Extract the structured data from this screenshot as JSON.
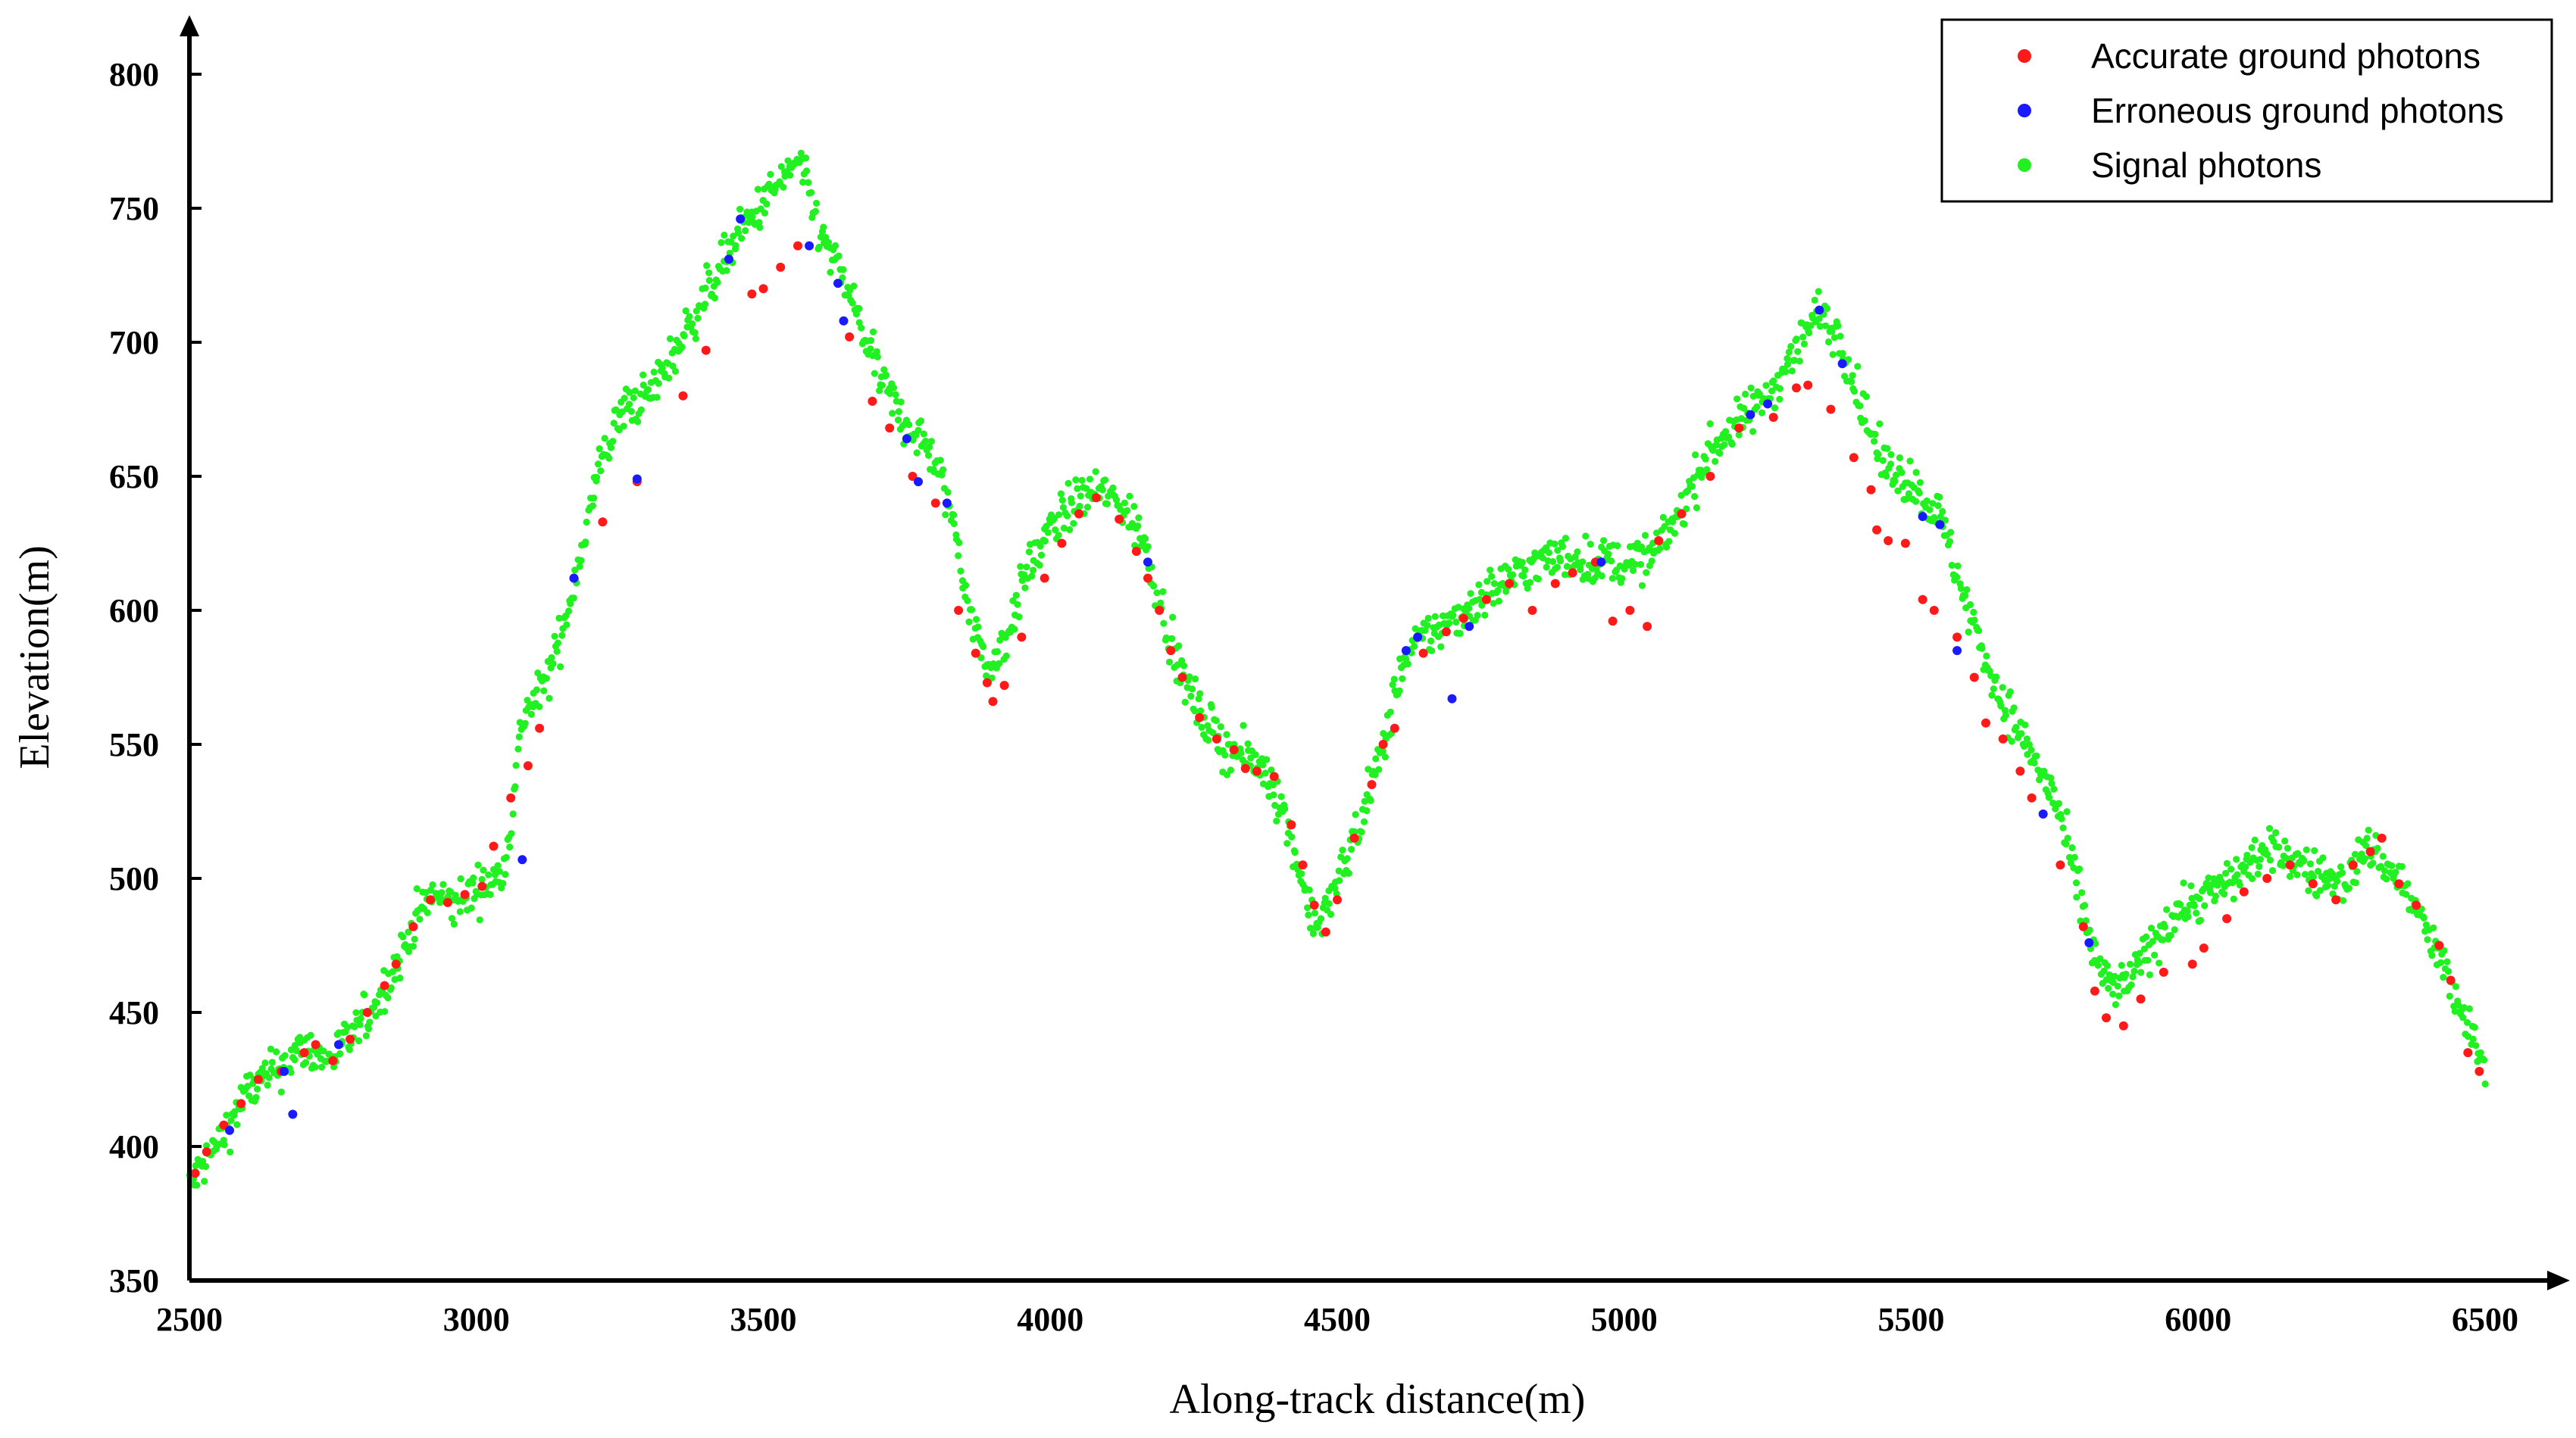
{
  "chart_data": {
    "type": "scatter",
    "title": "",
    "xlabel": "Along-track distance(m)",
    "ylabel": "Elevation(m)",
    "xlim": [
      2500,
      6500
    ],
    "ylim": [
      350,
      800
    ],
    "xticks": [
      "2500",
      "3000",
      "3500",
      "4000",
      "4500",
      "5000",
      "5500",
      "6000",
      "6500"
    ],
    "yticks": [
      "350",
      "400",
      "450",
      "500",
      "550",
      "600",
      "650",
      "700",
      "750",
      "800"
    ],
    "grid": false,
    "legend_position": "top-right",
    "series": [
      {
        "name": "Accurate ground photons",
        "color": "#ff1a1a",
        "points": [
          [
            2510,
            390
          ],
          [
            2530,
            398
          ],
          [
            2560,
            408
          ],
          [
            2590,
            416
          ],
          [
            2620,
            425
          ],
          [
            2660,
            428
          ],
          [
            2700,
            435
          ],
          [
            2720,
            438
          ],
          [
            2750,
            432
          ],
          [
            2780,
            440
          ],
          [
            2810,
            450
          ],
          [
            2840,
            460
          ],
          [
            2860,
            468
          ],
          [
            2890,
            482
          ],
          [
            2920,
            492
          ],
          [
            2950,
            491
          ],
          [
            2980,
            494
          ],
          [
            3010,
            497
          ],
          [
            3030,
            512
          ],
          [
            3060,
            530
          ],
          [
            3090,
            542
          ],
          [
            3110,
            556
          ],
          [
            3170,
            612
          ],
          [
            3220,
            633
          ],
          [
            3280,
            648
          ],
          [
            3360,
            680
          ],
          [
            3400,
            697
          ],
          [
            3480,
            718
          ],
          [
            3500,
            720
          ],
          [
            3530,
            728
          ],
          [
            3560,
            736
          ],
          [
            3650,
            702
          ],
          [
            3690,
            678
          ],
          [
            3720,
            668
          ],
          [
            3760,
            650
          ],
          [
            3800,
            640
          ],
          [
            3840,
            600
          ],
          [
            3870,
            584
          ],
          [
            3890,
            573
          ],
          [
            3900,
            566
          ],
          [
            3920,
            572
          ],
          [
            3950,
            590
          ],
          [
            3990,
            612
          ],
          [
            4020,
            625
          ],
          [
            4050,
            636
          ],
          [
            4080,
            642
          ],
          [
            4120,
            634
          ],
          [
            4150,
            622
          ],
          [
            4170,
            612
          ],
          [
            4190,
            600
          ],
          [
            4210,
            585
          ],
          [
            4230,
            575
          ],
          [
            4260,
            560
          ],
          [
            4290,
            552
          ],
          [
            4320,
            548
          ],
          [
            4340,
            541
          ],
          [
            4360,
            540
          ],
          [
            4390,
            538
          ],
          [
            4420,
            520
          ],
          [
            4440,
            505
          ],
          [
            4460,
            490
          ],
          [
            4480,
            480
          ],
          [
            4500,
            492
          ],
          [
            4530,
            515
          ],
          [
            4560,
            535
          ],
          [
            4580,
            550
          ],
          [
            4600,
            556
          ],
          [
            4650,
            584
          ],
          [
            4690,
            592
          ],
          [
            4720,
            597
          ],
          [
            4760,
            604
          ],
          [
            4800,
            610
          ],
          [
            4840,
            600
          ],
          [
            4880,
            610
          ],
          [
            4910,
            614
          ],
          [
            4950,
            618
          ],
          [
            4980,
            596
          ],
          [
            5010,
            600
          ],
          [
            5040,
            594
          ],
          [
            5060,
            626
          ],
          [
            5100,
            636
          ],
          [
            5150,
            650
          ],
          [
            5200,
            668
          ],
          [
            5260,
            672
          ],
          [
            5300,
            683
          ],
          [
            5320,
            684
          ],
          [
            5360,
            675
          ],
          [
            5400,
            657
          ],
          [
            5430,
            645
          ],
          [
            5440,
            630
          ],
          [
            5460,
            626
          ],
          [
            5490,
            625
          ],
          [
            5520,
            604
          ],
          [
            5540,
            600
          ],
          [
            5580,
            590
          ],
          [
            5610,
            575
          ],
          [
            5630,
            558
          ],
          [
            5660,
            552
          ],
          [
            5690,
            540
          ],
          [
            5710,
            530
          ],
          [
            5760,
            505
          ],
          [
            5800,
            482
          ],
          [
            5820,
            458
          ],
          [
            5840,
            448
          ],
          [
            5870,
            445
          ],
          [
            5900,
            455
          ],
          [
            5940,
            465
          ],
          [
            5990,
            468
          ],
          [
            6010,
            474
          ],
          [
            6050,
            485
          ],
          [
            6080,
            495
          ],
          [
            6120,
            500
          ],
          [
            6160,
            505
          ],
          [
            6200,
            498
          ],
          [
            6240,
            492
          ],
          [
            6270,
            505
          ],
          [
            6300,
            510
          ],
          [
            6320,
            515
          ],
          [
            6350,
            498
          ],
          [
            6380,
            490
          ],
          [
            6420,
            475
          ],
          [
            6440,
            462
          ],
          [
            6470,
            435
          ],
          [
            6490,
            428
          ]
        ]
      },
      {
        "name": "Erroneous ground photons",
        "color": "#1a1aff",
        "points": [
          [
            2570,
            406
          ],
          [
            2665,
            428
          ],
          [
            2680,
            412
          ],
          [
            2760,
            438
          ],
          [
            3080,
            507
          ],
          [
            3170,
            612
          ],
          [
            3280,
            649
          ],
          [
            3440,
            731
          ],
          [
            3460,
            746
          ],
          [
            3580,
            736
          ],
          [
            3630,
            722
          ],
          [
            3640,
            708
          ],
          [
            3750,
            664
          ],
          [
            3770,
            648
          ],
          [
            3820,
            640
          ],
          [
            4170,
            618
          ],
          [
            4620,
            585
          ],
          [
            4640,
            590
          ],
          [
            4700,
            567
          ],
          [
            4730,
            594
          ],
          [
            4960,
            618
          ],
          [
            5220,
            673
          ],
          [
            5250,
            677
          ],
          [
            5340,
            712
          ],
          [
            5380,
            692
          ],
          [
            5520,
            635
          ],
          [
            5550,
            632
          ],
          [
            5580,
            585
          ],
          [
            5730,
            524
          ],
          [
            5810,
            476
          ]
        ]
      },
      {
        "name": "Signal photons",
        "color": "#21f021",
        "profile": [
          [
            2500,
            385
          ],
          [
            2560,
            405
          ],
          [
            2600,
            420
          ],
          [
            2660,
            430
          ],
          [
            2700,
            437
          ],
          [
            2740,
            432
          ],
          [
            2780,
            440
          ],
          [
            2830,
            455
          ],
          [
            2870,
            472
          ],
          [
            2900,
            488
          ],
          [
            2930,
            494
          ],
          [
            2960,
            490
          ],
          [
            3000,
            496
          ],
          [
            3040,
            500
          ],
          [
            3060,
            520
          ],
          [
            3080,
            560
          ],
          [
            3120,
            572
          ],
          [
            3150,
            592
          ],
          [
            3180,
            620
          ],
          [
            3220,
            658
          ],
          [
            3260,
            676
          ],
          [
            3300,
            680
          ],
          [
            3350,
            698
          ],
          [
            3400,
            718
          ],
          [
            3450,
            738
          ],
          [
            3500,
            752
          ],
          [
            3560,
            768
          ],
          [
            3600,
            740
          ],
          [
            3650,
            718
          ],
          [
            3700,
            688
          ],
          [
            3740,
            672
          ],
          [
            3790,
            660
          ],
          [
            3830,
            635
          ],
          [
            3860,
            600
          ],
          [
            3890,
            578
          ],
          [
            3920,
            588
          ],
          [
            3960,
            615
          ],
          [
            4000,
            630
          ],
          [
            4040,
            640
          ],
          [
            4080,
            645
          ],
          [
            4120,
            640
          ],
          [
            4160,
            628
          ],
          [
            4190,
            605
          ],
          [
            4220,
            580
          ],
          [
            4260,
            562
          ],
          [
            4300,
            550
          ],
          [
            4340,
            545
          ],
          [
            4380,
            540
          ],
          [
            4420,
            515
          ],
          [
            4450,
            490
          ],
          [
            4470,
            482
          ],
          [
            4500,
            498
          ],
          [
            4540,
            522
          ],
          [
            4580,
            548
          ],
          [
            4610,
            578
          ],
          [
            4650,
            590
          ],
          [
            4700,
            596
          ],
          [
            4750,
            605
          ],
          [
            4800,
            612
          ],
          [
            4850,
            618
          ],
          [
            4900,
            620
          ],
          [
            4950,
            618
          ],
          [
            5000,
            618
          ],
          [
            5050,
            620
          ],
          [
            5100,
            638
          ],
          [
            5150,
            660
          ],
          [
            5200,
            670
          ],
          [
            5250,
            680
          ],
          [
            5300,
            698
          ],
          [
            5340,
            712
          ],
          [
            5380,
            700
          ],
          [
            5420,
            672
          ],
          [
            5450,
            655
          ],
          [
            5500,
            648
          ],
          [
            5550,
            635
          ],
          [
            5600,
            600
          ],
          [
            5650,
            570
          ],
          [
            5700,
            550
          ],
          [
            5750,
            530
          ],
          [
            5780,
            505
          ],
          [
            5820,
            470
          ],
          [
            5850,
            458
          ],
          [
            5880,
            462
          ],
          [
            5920,
            475
          ],
          [
            5960,
            488
          ],
          [
            6000,
            492
          ],
          [
            6050,
            498
          ],
          [
            6100,
            508
          ],
          [
            6150,
            510
          ],
          [
            6200,
            502
          ],
          [
            6250,
            498
          ],
          [
            6300,
            512
          ],
          [
            6350,
            500
          ],
          [
            6400,
            480
          ],
          [
            6450,
            455
          ],
          [
            6500,
            428
          ]
        ]
      }
    ]
  }
}
